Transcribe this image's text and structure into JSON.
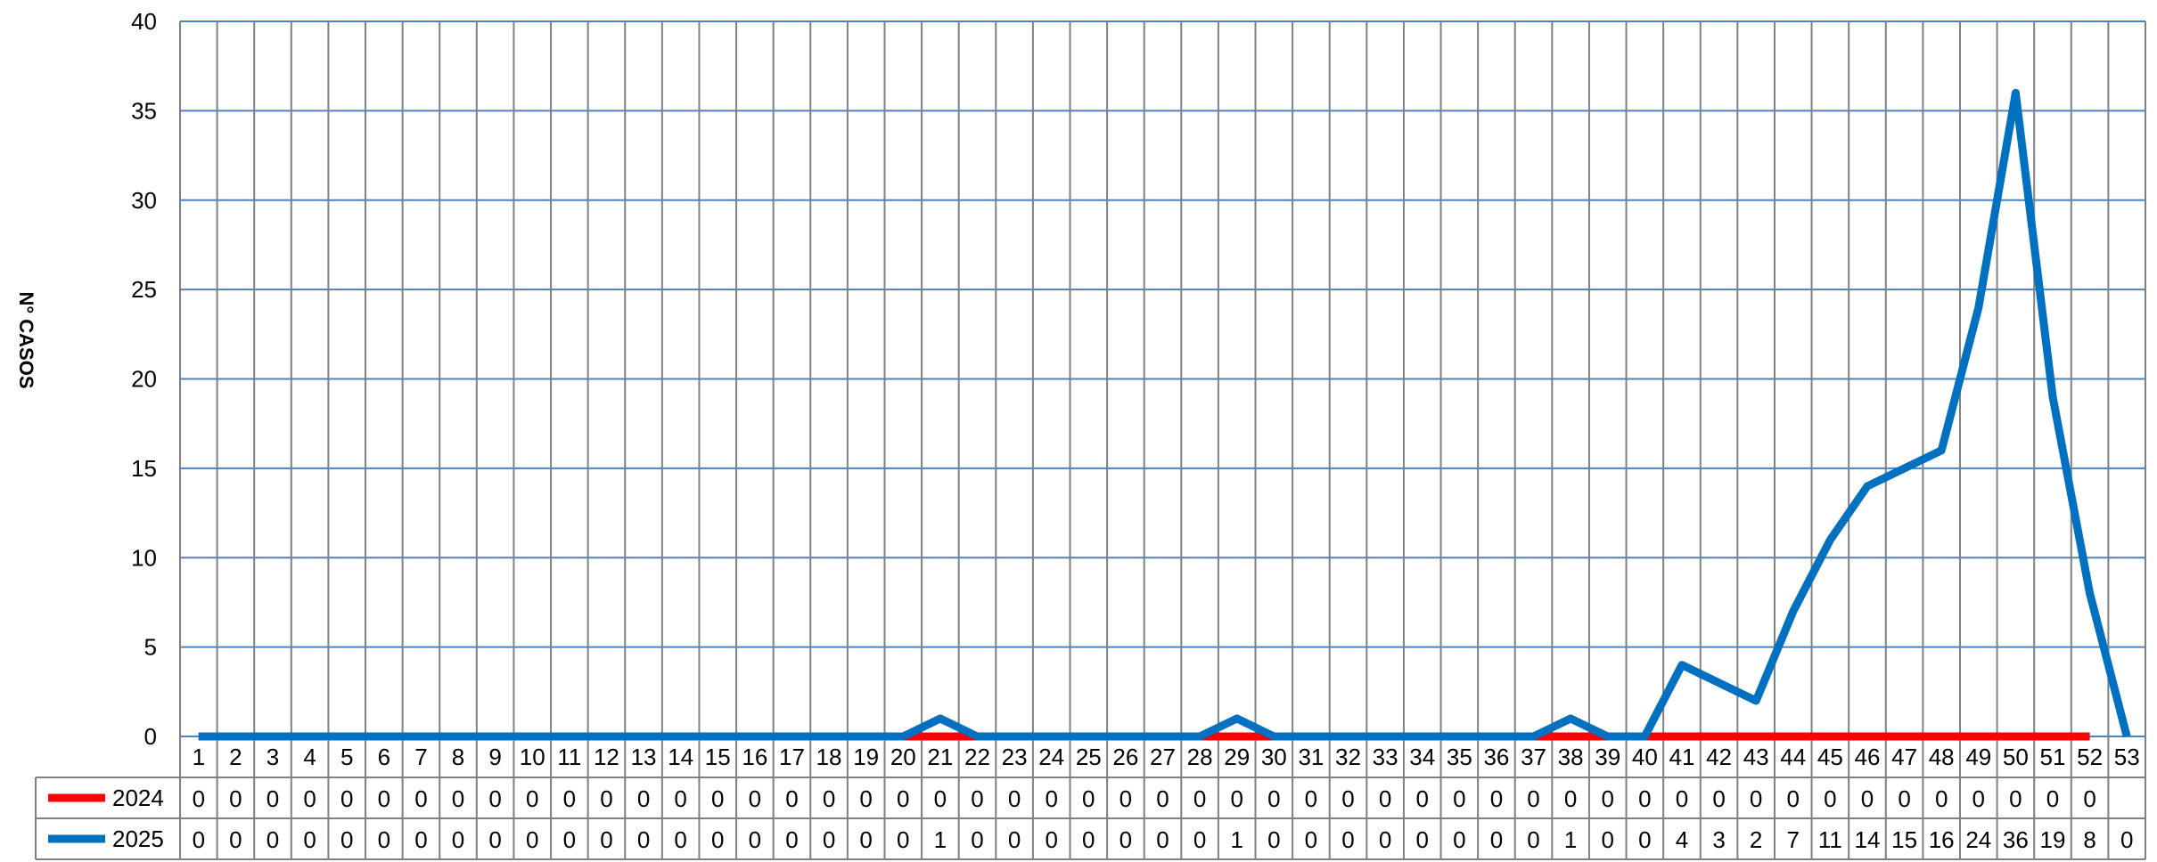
{
  "chart_data": {
    "type": "line",
    "ylabel": "N° CASOS",
    "ylim": [
      0,
      40
    ],
    "yticks": [
      0,
      5,
      10,
      15,
      20,
      25,
      30,
      35,
      40
    ],
    "grid": true,
    "legend": "table-left",
    "categories": [
      "1",
      "2",
      "3",
      "4",
      "5",
      "6",
      "7",
      "8",
      "9",
      "10",
      "11",
      "12",
      "13",
      "14",
      "15",
      "16",
      "17",
      "18",
      "19",
      "20",
      "21",
      "22",
      "23",
      "24",
      "25",
      "26",
      "27",
      "28",
      "29",
      "30",
      "31",
      "32",
      "33",
      "34",
      "35",
      "36",
      "37",
      "38",
      "39",
      "40",
      "41",
      "42",
      "43",
      "44",
      "45",
      "46",
      "47",
      "48",
      "49",
      "50",
      "51",
      "52",
      "53"
    ],
    "series": [
      {
        "name": "2024",
        "color": "#ff0000",
        "values": [
          0,
          0,
          0,
          0,
          0,
          0,
          0,
          0,
          0,
          0,
          0,
          0,
          0,
          0,
          0,
          0,
          0,
          0,
          0,
          0,
          0,
          0,
          0,
          0,
          0,
          0,
          0,
          0,
          0,
          0,
          0,
          0,
          0,
          0,
          0,
          0,
          0,
          0,
          0,
          0,
          0,
          0,
          0,
          0,
          0,
          0,
          0,
          0,
          0,
          0,
          0,
          0,
          null
        ]
      },
      {
        "name": "2025",
        "color": "#0070c0",
        "values": [
          0,
          0,
          0,
          0,
          0,
          0,
          0,
          0,
          0,
          0,
          0,
          0,
          0,
          0,
          0,
          0,
          0,
          0,
          0,
          0,
          1,
          0,
          0,
          0,
          0,
          0,
          0,
          0,
          1,
          0,
          0,
          0,
          0,
          0,
          0,
          0,
          0,
          1,
          0,
          0,
          4,
          3,
          2,
          7,
          11,
          14,
          15,
          16,
          24,
          36,
          19,
          8,
          0
        ]
      }
    ]
  }
}
